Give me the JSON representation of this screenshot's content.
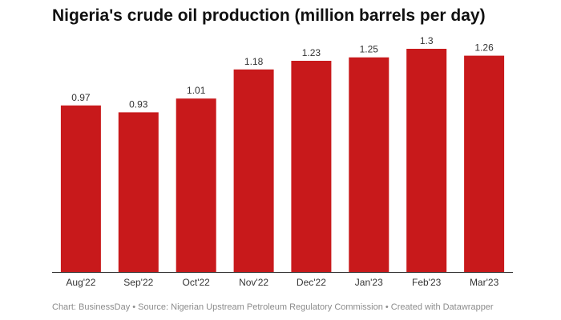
{
  "chart_data": {
    "type": "bar",
    "title": "Nigeria's crude oil production (million barrels per day)",
    "categories": [
      "Aug'22",
      "Sep'22",
      "Oct'22",
      "Nov'22",
      "Dec'22",
      "Jan'23",
      "Feb'23",
      "Mar'23"
    ],
    "values": [
      0.97,
      0.93,
      1.01,
      1.18,
      1.23,
      1.25,
      1.3,
      1.26
    ],
    "value_labels": [
      "0.97",
      "0.93",
      "1.01",
      "1.18",
      "1.23",
      "1.25",
      "1.3",
      "1.26"
    ],
    "xlabel": "",
    "ylabel": "",
    "ylim": [
      0,
      1.3
    ],
    "grid": false,
    "bar_color": "#c8191b",
    "footer": "Chart: BusinessDay • Source: Nigerian Upstream Petroleum Regulatory Commission • Created with Datawrapper"
  }
}
